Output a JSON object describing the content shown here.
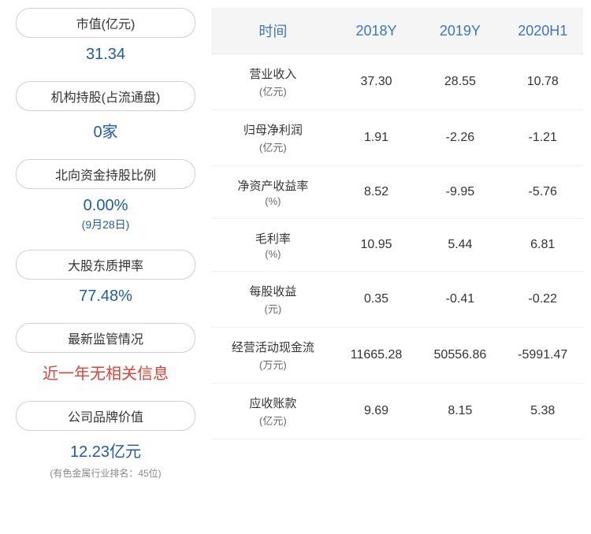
{
  "left": {
    "metrics": [
      {
        "label": "市值(亿元)",
        "value": "31.34",
        "color": "blue"
      },
      {
        "label": "机构持股(占流通盘)",
        "value": "0家",
        "color": "blue"
      },
      {
        "label": "北向资金持股比例",
        "value": "0.00%",
        "color": "blue",
        "subtext": "(9月28日)"
      },
      {
        "label": "大股东质押率",
        "value": "77.48%",
        "color": "blue"
      },
      {
        "label": "最新监管情况",
        "value": "近一年无相关信息",
        "color": "red"
      },
      {
        "label": "公司品牌价值",
        "value": "12.23亿元",
        "color": "blue",
        "note": "(有色金属行业排名：45位)"
      }
    ]
  },
  "table": {
    "headers": [
      "时间",
      "2018Y",
      "2019Y",
      "2020H1"
    ],
    "rows": [
      {
        "label": "营业收入",
        "unit": "(亿元)",
        "values": [
          "37.30",
          "28.55",
          "10.78"
        ]
      },
      {
        "label": "归母净利润",
        "unit": "(亿元)",
        "values": [
          "1.91",
          "-2.26",
          "-1.21"
        ]
      },
      {
        "label": "净资产收益率",
        "unit": "(%)",
        "values": [
          "8.52",
          "-9.95",
          "-5.76"
        ]
      },
      {
        "label": "毛利率",
        "unit": "(%)",
        "values": [
          "10.95",
          "5.44",
          "6.81"
        ]
      },
      {
        "label": "每股收益",
        "unit": "(元)",
        "values": [
          "0.35",
          "-0.41",
          "-0.22"
        ]
      },
      {
        "label": "经营活动现金流",
        "unit": "(万元)",
        "values": [
          "11665.28",
          "50556.86",
          "-5991.47"
        ]
      },
      {
        "label": "应收账款",
        "unit": "(亿元)",
        "values": [
          "9.69",
          "8.15",
          "5.38"
        ]
      }
    ]
  },
  "colors": {
    "header_bg": "#f5f5f5",
    "header_text": "#3b77c2",
    "value_blue": "#1e5ba8",
    "value_red": "#d9453a",
    "border": "#d0d0d0",
    "row_border": "#f0f0f0"
  }
}
